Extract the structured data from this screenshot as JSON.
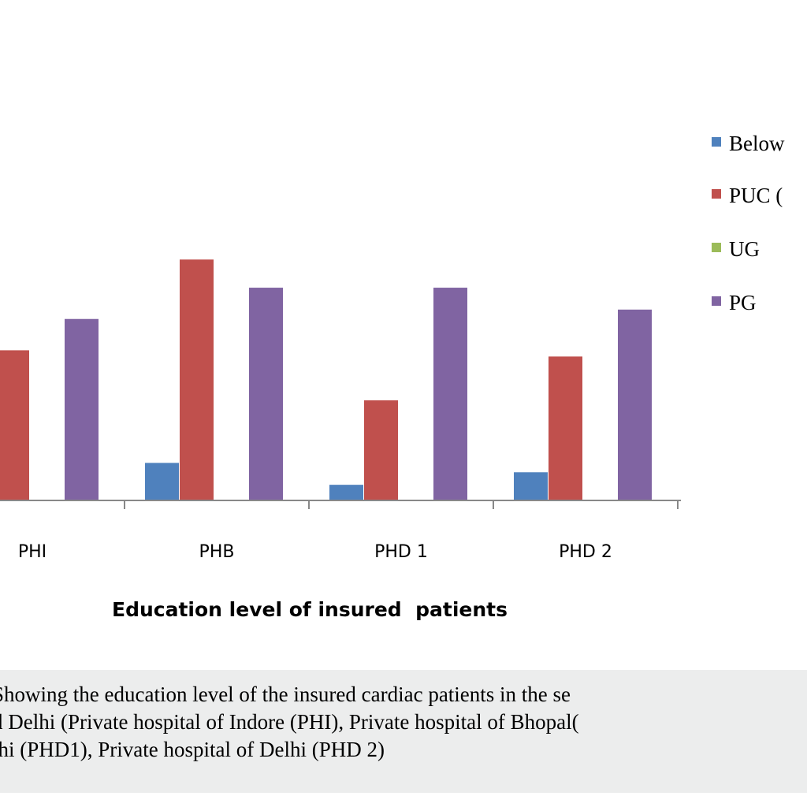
{
  "chart_data": {
    "type": "bar",
    "categories": [
      "PHI",
      "PHB",
      "PHD 1",
      "PHD 2"
    ],
    "series": [
      {
        "name": "Below",
        "color": "#4f81bd",
        "values": [
          null,
          12,
          5,
          9
        ]
      },
      {
        "name": "PUC (",
        "color": "#c0504d",
        "values": [
          48,
          77,
          32,
          46
        ]
      },
      {
        "name": "UG",
        "color": "#9bbb59",
        "values": [
          null,
          null,
          null,
          null
        ]
      },
      {
        "name": "PG",
        "color": "#8064a2",
        "values": [
          58,
          68,
          68,
          61
        ]
      }
    ],
    "xlabel": "Education level of insured  patients",
    "ylim": [
      0,
      100
    ],
    "grid": false,
    "legend": "right"
  },
  "caption": "Showing the education level of the insured cardiac patients in the se\nd Delhi (Private hospital of Indore (PHI), Private hospital of Bhopal(\nlhi (PHD1), Private hospital of Delhi (PHD 2)"
}
